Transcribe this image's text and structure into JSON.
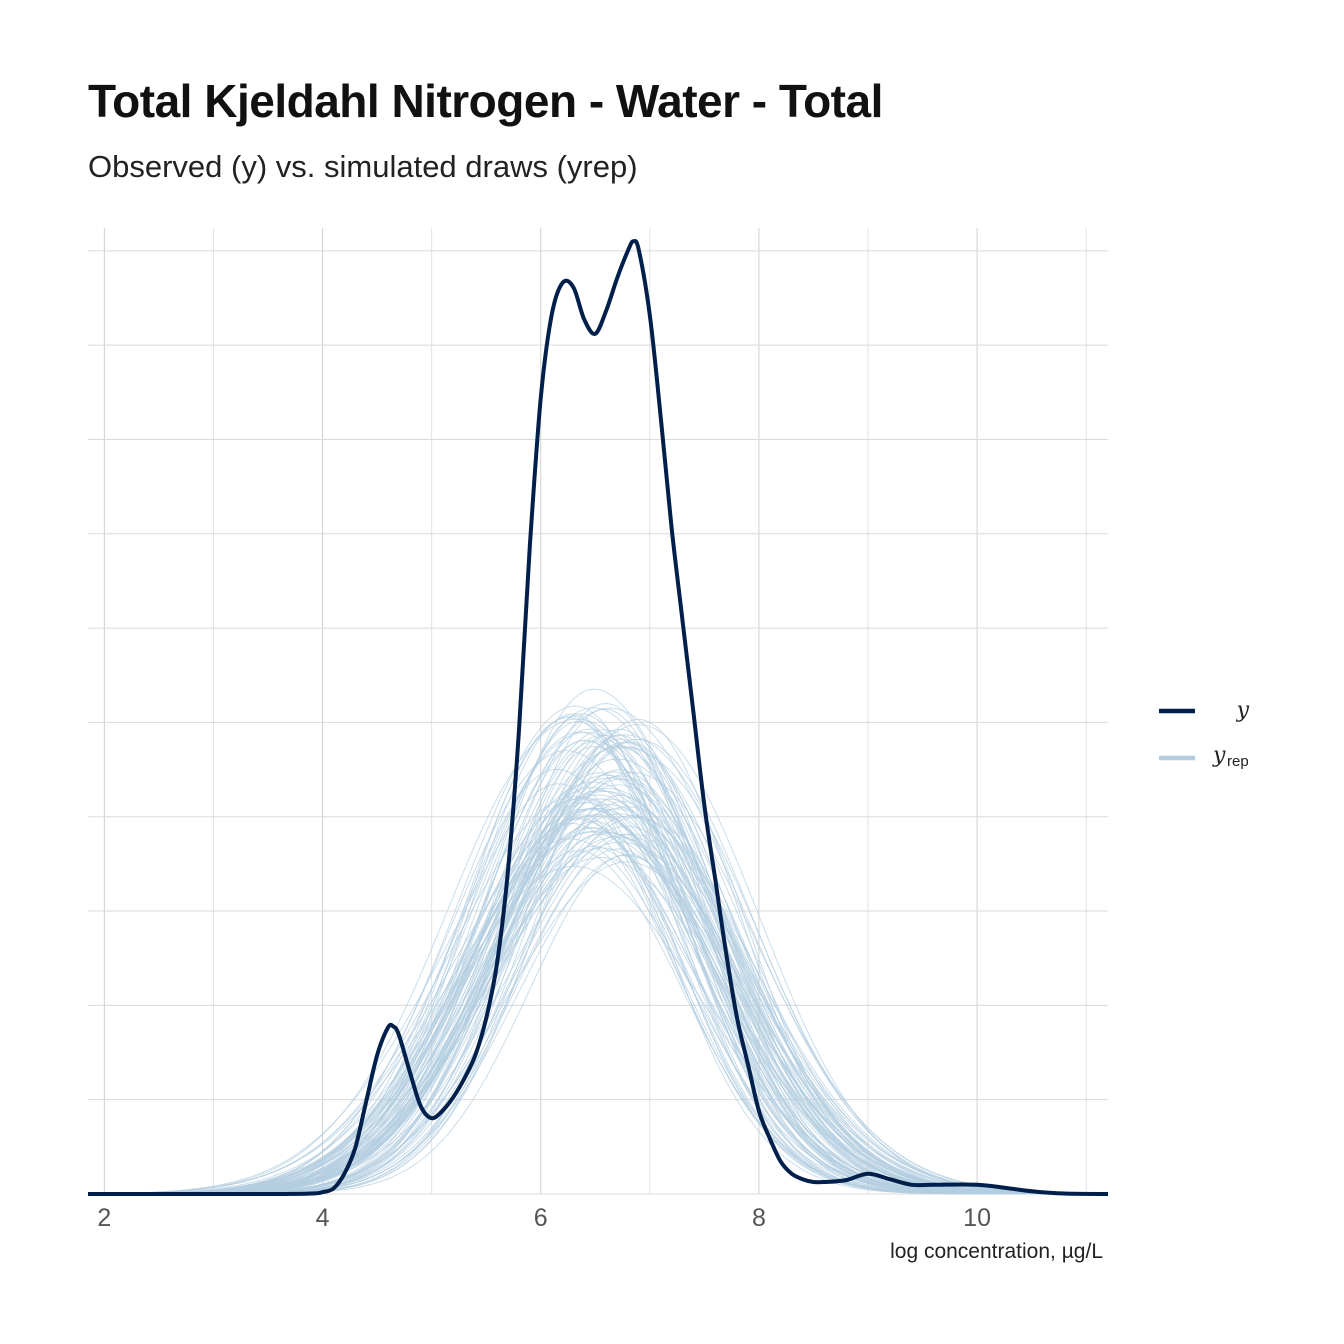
{
  "chart_data": {
    "type": "line",
    "title": "Total Kjeldahl Nitrogen - Water - Total",
    "subtitle": "Observed (y) vs. simulated draws (yrep)",
    "xlabel": "log concentration, µg/L",
    "ylabel": "",
    "xlim": [
      1.85,
      11.2
    ],
    "x_ticks": [
      "2",
      "4",
      "6",
      "8",
      "10"
    ],
    "x_tick_values": [
      2,
      4,
      6,
      8,
      10
    ],
    "y_axis_labels_shown": false,
    "grid": true,
    "legend_position": "right",
    "legend": [
      {
        "label": "y",
        "color": "#011f4b"
      },
      {
        "label": "y",
        "subscript": "rep",
        "color": "#b3cde0"
      }
    ],
    "colors": {
      "y": "#011f4b",
      "yrep": "#b3cde0"
    },
    "yrep_draws": {
      "count": 100,
      "x_mean": 6.55,
      "sd_range": [
        0.85,
        1.2
      ],
      "peak_density_range": [
        0.35,
        0.51
      ]
    },
    "series": [
      {
        "name": "y",
        "x": [
          1.85,
          3.5,
          3.9,
          4.0,
          4.1,
          4.2,
          4.3,
          4.4,
          4.5,
          4.6,
          4.65,
          4.7,
          4.8,
          4.9,
          5.0,
          5.1,
          5.2,
          5.3,
          5.4,
          5.5,
          5.6,
          5.7,
          5.8,
          5.9,
          6.0,
          6.1,
          6.2,
          6.3,
          6.4,
          6.5,
          6.6,
          6.7,
          6.8,
          6.85,
          6.9,
          7.0,
          7.1,
          7.2,
          7.3,
          7.4,
          7.5,
          7.6,
          7.7,
          7.8,
          7.9,
          8.0,
          8.1,
          8.2,
          8.3,
          8.4,
          8.5,
          8.6,
          8.8,
          9.0,
          9.2,
          9.4,
          9.6,
          10.0,
          10.3,
          10.5,
          10.8,
          11.2
        ],
        "y": [
          0.0,
          0.0,
          0.0005,
          0.002,
          0.006,
          0.022,
          0.05,
          0.1,
          0.15,
          0.18,
          0.181,
          0.172,
          0.132,
          0.095,
          0.082,
          0.09,
          0.105,
          0.125,
          0.15,
          0.19,
          0.25,
          0.35,
          0.5,
          0.7,
          0.86,
          0.95,
          0.985,
          0.98,
          0.945,
          0.93,
          0.955,
          0.99,
          1.02,
          1.03,
          1.02,
          0.95,
          0.84,
          0.72,
          0.62,
          0.52,
          0.42,
          0.34,
          0.26,
          0.19,
          0.14,
          0.09,
          0.06,
          0.035,
          0.022,
          0.016,
          0.013,
          0.013,
          0.015,
          0.022,
          0.016,
          0.01,
          0.01,
          0.01,
          0.006,
          0.003,
          0.0005,
          0.0
        ]
      }
    ]
  }
}
